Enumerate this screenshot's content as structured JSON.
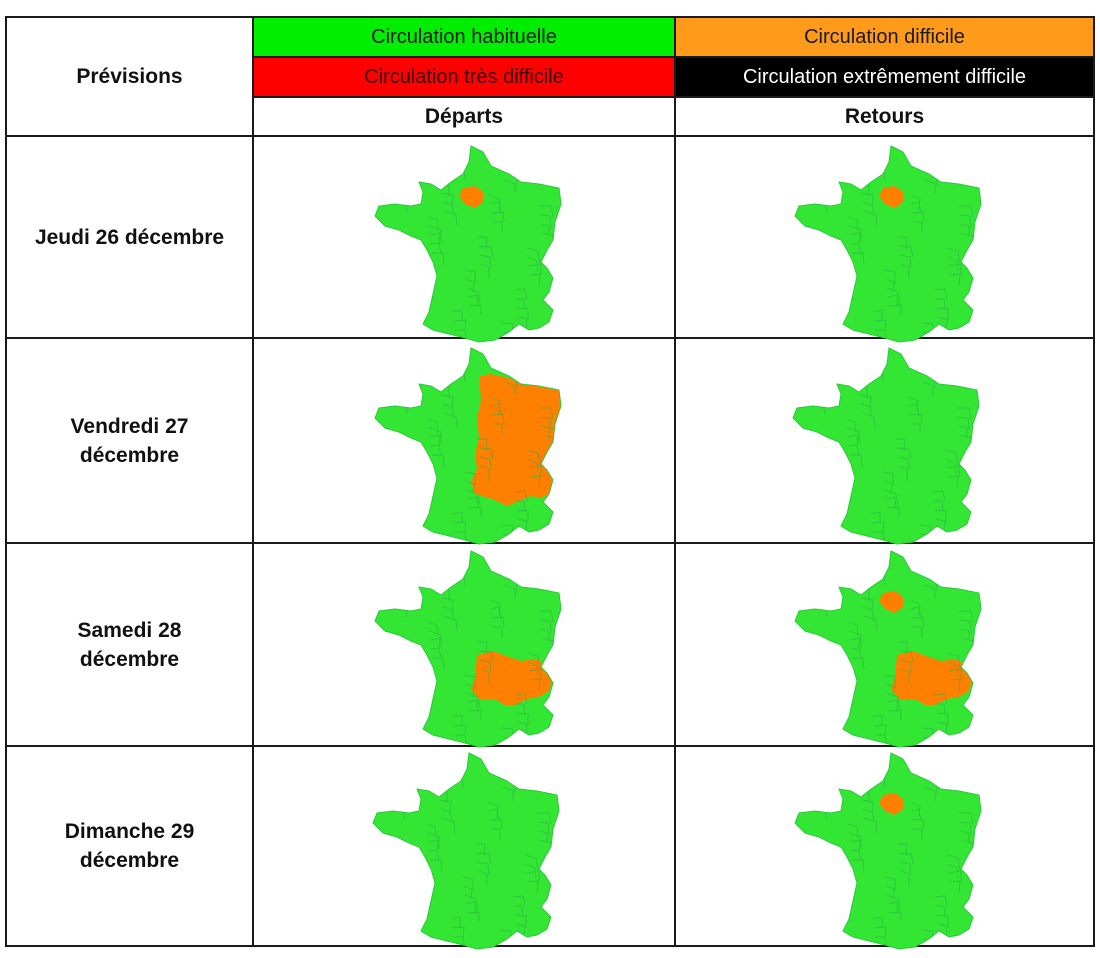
{
  "header": {
    "title": "Prévisions",
    "legend": [
      {
        "label": "Circulation habituelle",
        "bg": "#00ee00",
        "fg": "#1a1a1a"
      },
      {
        "label": "Circulation difficile",
        "bg": "#ff9a1a",
        "fg": "#1a1a1a"
      },
      {
        "label": "Circulation très difficile",
        "bg": "#ff0000",
        "fg": "#3a0000"
      },
      {
        "label": "Circulation extrêmement difficile",
        "bg": "#000000",
        "fg": "#ffffff"
      }
    ],
    "columns": [
      "Départs",
      "Retours"
    ]
  },
  "colors": {
    "normal": "#33e633",
    "normal_border": "#2aa84a",
    "difficult": "#ff8000"
  },
  "rows": [
    {
      "day": "Jeudi 26 décembre",
      "departs": {
        "difficult_regions": [
          "Île-de-France"
        ]
      },
      "retours": {
        "difficult_regions": [
          "Île-de-France"
        ]
      }
    },
    {
      "day": "Vendredi 27\ndécembre",
      "departs": {
        "difficult_regions": [
          "Est",
          "Centre-Est",
          "Rhône-Alpes",
          "Auvergne"
        ]
      },
      "retours": {
        "difficult_regions": []
      }
    },
    {
      "day": "Samedi 28\ndécembre",
      "departs": {
        "difficult_regions": [
          "Auvergne",
          "Rhône-Alpes"
        ]
      },
      "retours": {
        "difficult_regions": [
          "Île-de-France",
          "Auvergne",
          "Rhône-Alpes"
        ]
      }
    },
    {
      "day": "Dimanche 29\ndécembre",
      "departs": {
        "difficult_regions": []
      },
      "retours": {
        "difficult_regions": [
          "Île-de-France"
        ]
      }
    }
  ]
}
